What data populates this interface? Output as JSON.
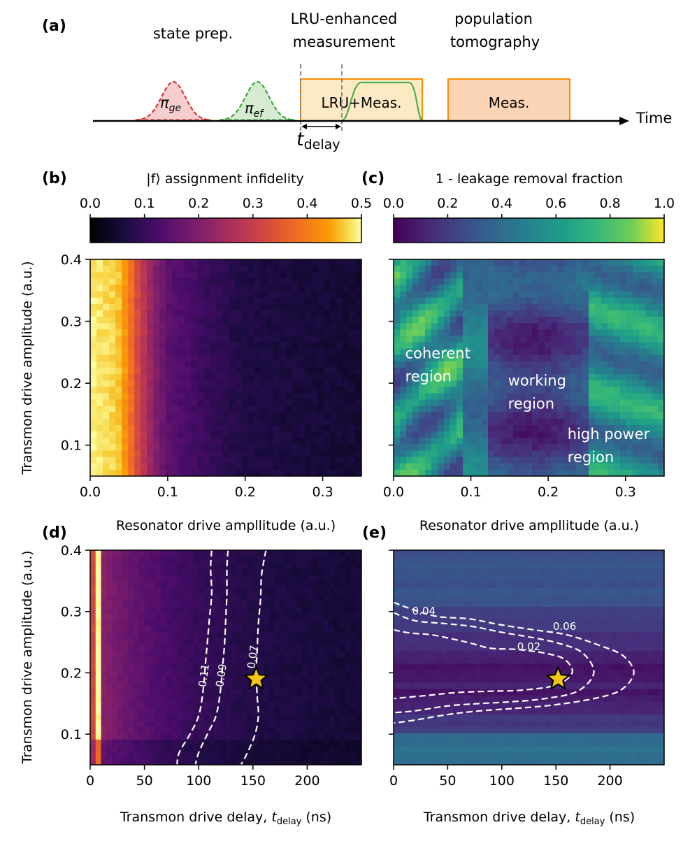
{
  "panel_a": {
    "label": "(a)",
    "headers": {
      "state_prep": "state prep.",
      "lru_line1": "LRU-enhanced",
      "lru_line2": "measurement",
      "pop_line1": "population",
      "pop_line2": "tomography"
    },
    "pulse_ge": "π",
    "pulse_ge_sub": "ge",
    "pulse_ef": "π",
    "pulse_ef_sub": "ef",
    "lru_box": "LRU+Meas.",
    "meas_box": "Meas.",
    "time_label": "Time",
    "tdelay": "t",
    "tdelay_sub": "delay",
    "colors": {
      "ge": "#d62728",
      "ef": "#2ca02c",
      "box": "#ff8c00",
      "ge_fill": "#f4c6c6",
      "ef_fill": "#cfe8c9",
      "lru_fill": "#fde9c4",
      "meas_fill": "#fbd5b5"
    }
  },
  "panel_labels": {
    "b": "(b)",
    "c": "(c)",
    "d": "(d)",
    "e": "(e)"
  },
  "chart_data": [
    {
      "id": "b",
      "type": "heatmap",
      "title": "|f⟩ assignment infidelity",
      "colormap": "inferno",
      "colorbar_range": [
        0.0,
        0.5
      ],
      "colorbar_ticks": [
        "0.0",
        "0.1",
        "0.2",
        "0.3",
        "0.4",
        "0.5"
      ],
      "xlabel": "Resonator drive ampllitude (a.u.)",
      "ylabel": "Transmon drive amplitude (a.u.)",
      "xlim": [
        0.0,
        0.35
      ],
      "ylim": [
        0.05,
        0.4
      ],
      "xticks": [
        0.0,
        0.1,
        0.2,
        0.3
      ],
      "xtick_labels": [
        "0.0",
        "0.1",
        "0.2",
        "0.3"
      ],
      "yticks": [
        0.1,
        0.2,
        0.3,
        0.4
      ],
      "ytick_labels": [
        "0.1",
        "0.2",
        "0.3",
        "0.4"
      ],
      "profile_x": [
        0.0,
        0.035,
        0.045,
        0.055,
        0.065,
        0.08,
        0.1,
        0.15,
        0.2,
        0.35
      ],
      "profile_value": [
        0.49,
        0.47,
        0.43,
        0.37,
        0.3,
        0.22,
        0.15,
        0.1,
        0.07,
        0.05
      ]
    },
    {
      "id": "c",
      "type": "heatmap",
      "title": "1 - leakage removal fraction",
      "colormap": "viridis",
      "colorbar_range": [
        0.0,
        1.0
      ],
      "colorbar_ticks": [
        "0.0",
        "0.2",
        "0.4",
        "0.6",
        "0.8",
        "1.0"
      ],
      "xlabel": "Resonator drive ampllitude (a.u.)",
      "xlim": [
        0.0,
        0.35
      ],
      "ylim": [
        0.05,
        0.4
      ],
      "xticks": [
        0.0,
        0.1,
        0.2,
        0.3
      ],
      "xtick_labels": [
        "0.0",
        "0.1",
        "0.2",
        "0.3"
      ],
      "yticks": [
        0.1,
        0.2,
        0.3,
        0.4
      ],
      "annotations": [
        {
          "line1": "coherent",
          "line2": "region",
          "x": 0.015,
          "y": 0.24
        },
        {
          "line1": "working",
          "line2": "region",
          "x": 0.148,
          "y": 0.196
        },
        {
          "line1": "high power",
          "line2": "region",
          "x": 0.225,
          "y": 0.11
        }
      ]
    },
    {
      "id": "d",
      "type": "heatmap",
      "colormap": "inferno",
      "xlabel": "Transmon drive delay, ",
      "xlabel_t": "t",
      "xlabel_sub": "delay",
      "xlabel_unit": " (ns)",
      "ylabel": "Transmon drive amplitude (a.u.)",
      "xlim": [
        0,
        250
      ],
      "ylim": [
        0.05,
        0.4
      ],
      "xticks": [
        0,
        50,
        100,
        150,
        200
      ],
      "xtick_labels": [
        "0",
        "50",
        "100",
        "150",
        "200"
      ],
      "yticks": [
        0.1,
        0.2,
        0.3,
        0.4
      ],
      "ytick_labels": [
        "0.1",
        "0.2",
        "0.3",
        "0.4"
      ],
      "contours": [
        {
          "label": "0.11",
          "points": [
            [
              112,
              0.4
            ],
            [
              111,
              0.37
            ],
            [
              112,
              0.33
            ],
            [
              110,
              0.29
            ],
            [
              108,
              0.25
            ],
            [
              106,
              0.21
            ],
            [
              104,
              0.17
            ],
            [
              100,
              0.13
            ],
            [
              92,
              0.1
            ],
            [
              82,
              0.07
            ],
            [
              80,
              0.05
            ]
          ],
          "label_at": [
            108,
            0.195
          ]
        },
        {
          "label": "0.09",
          "points": [
            [
              127,
              0.4
            ],
            [
              126,
              0.37
            ],
            [
              126,
              0.33
            ],
            [
              125,
              0.29
            ],
            [
              124,
              0.25
            ],
            [
              122,
              0.21
            ],
            [
              120,
              0.17
            ],
            [
              116,
              0.13
            ],
            [
              108,
              0.1
            ],
            [
              100,
              0.07
            ],
            [
              97,
              0.05
            ]
          ],
          "label_at": [
            124,
            0.195
          ]
        },
        {
          "label": "0.07",
          "points": [
            [
              162,
              0.4
            ],
            [
              158,
              0.36
            ],
            [
              157,
              0.32
            ],
            [
              155,
              0.28
            ],
            [
              154,
              0.24
            ],
            [
              153,
              0.2
            ],
            [
              154,
              0.16
            ],
            [
              155,
              0.13
            ],
            [
              152,
              0.1
            ],
            [
              145,
              0.07
            ],
            [
              139,
              0.05
            ]
          ],
          "label_at": [
            153,
            0.225
          ]
        }
      ],
      "star": [
        153,
        0.19
      ]
    },
    {
      "id": "e",
      "type": "heatmap",
      "colormap": "viridis",
      "xlabel": "Transmon drive delay, ",
      "xlabel_t": "t",
      "xlabel_sub": "delay",
      "xlabel_unit": " (ns)",
      "xlim": [
        0,
        250
      ],
      "ylim": [
        0.05,
        0.4
      ],
      "xticks": [
        0,
        50,
        100,
        150,
        200
      ],
      "xtick_labels": [
        "0",
        "50",
        "100",
        "150",
        "200"
      ],
      "yticks": [
        0.1,
        0.2,
        0.3,
        0.4
      ],
      "contours": [
        {
          "label": "0.06",
          "points": [
            [
              0,
              0.315
            ],
            [
              15,
              0.305
            ],
            [
              40,
              0.292
            ],
            [
              70,
              0.288
            ],
            [
              100,
              0.278
            ],
            [
              130,
              0.27
            ],
            [
              160,
              0.262
            ],
            [
              190,
              0.245
            ],
            [
              212,
              0.228
            ],
            [
              222,
              0.2
            ],
            [
              210,
              0.172
            ],
            [
              185,
              0.158
            ],
            [
              150,
              0.148
            ],
            [
              120,
              0.143
            ],
            [
              80,
              0.138
            ],
            [
              50,
              0.132
            ],
            [
              20,
              0.123
            ],
            [
              0,
              0.118
            ]
          ],
          "label_at": [
            158,
            0.27
          ]
        },
        {
          "label": "0.04",
          "points": [
            [
              0,
              0.298
            ],
            [
              20,
              0.285
            ],
            [
              50,
              0.28
            ],
            [
              75,
              0.275
            ],
            [
              100,
              0.266
            ],
            [
              130,
              0.257
            ],
            [
              155,
              0.247
            ],
            [
              175,
              0.232
            ],
            [
              185,
              0.2
            ],
            [
              170,
              0.17
            ],
            [
              140,
              0.158
            ],
            [
              110,
              0.153
            ],
            [
              80,
              0.15
            ],
            [
              50,
              0.146
            ],
            [
              20,
              0.138
            ],
            [
              0,
              0.135
            ]
          ],
          "label_at": [
            28,
            0.295
          ]
        },
        {
          "label": "0.02",
          "points": [
            [
              0,
              0.27
            ],
            [
              15,
              0.265
            ],
            [
              35,
              0.262
            ],
            [
              55,
              0.255
            ],
            [
              72,
              0.248
            ],
            [
              90,
              0.24
            ],
            [
              115,
              0.238
            ],
            [
              140,
              0.232
            ],
            [
              158,
              0.222
            ],
            [
              165,
              0.2
            ],
            [
              150,
              0.18
            ],
            [
              120,
              0.172
            ],
            [
              90,
              0.17
            ],
            [
              60,
              0.168
            ],
            [
              30,
              0.163
            ],
            [
              0,
              0.158
            ]
          ],
          "label_at": [
            125,
            0.237
          ]
        }
      ],
      "star": [
        152,
        0.19
      ]
    }
  ]
}
